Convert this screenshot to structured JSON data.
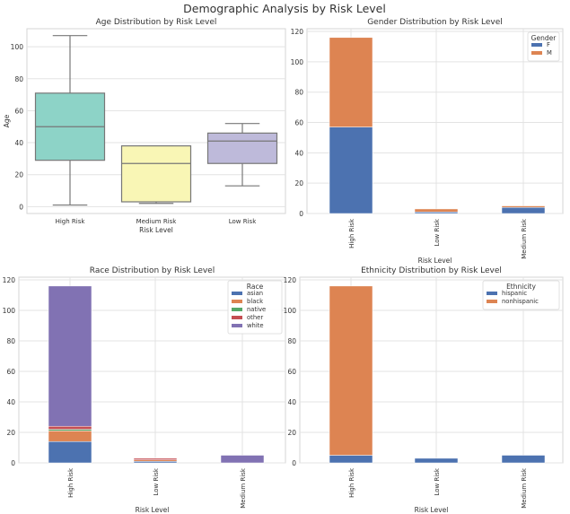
{
  "figure_title": "Demographic Analysis by Risk Level",
  "chart_data": [
    {
      "type": "box",
      "title": "Age Distribution by Risk Level",
      "xlabel": "Risk Level",
      "ylabel": "Age",
      "categories": [
        "High Risk",
        "Medium Risk",
        "Low Risk"
      ],
      "boxes": [
        {
          "whislo": 1,
          "q1": 29,
          "median": 50,
          "q3": 71,
          "whishi": 107,
          "color": "#8dd3c7"
        },
        {
          "whislo": 2,
          "q1": 3,
          "median": 27,
          "q3": 38,
          "whishi": 38,
          "color": "#f9f6b5"
        },
        {
          "whislo": 13,
          "q1": 27,
          "median": 41,
          "q3": 46,
          "whishi": 52,
          "color": "#bebada"
        }
      ],
      "ylim": [
        -4.3,
        111.3
      ],
      "yticks": [
        0,
        20,
        40,
        60,
        80,
        100
      ],
      "grid": true
    },
    {
      "type": "stacked-bar",
      "title": "Gender Distribution by Risk Level",
      "xlabel": "Risk Level",
      "ylabel": "",
      "categories": [
        "High Risk",
        "Low Risk",
        "Medium Risk"
      ],
      "legend_title": "Gender",
      "legend_position": "top-right",
      "series": [
        {
          "name": "F",
          "values": [
            57,
            1,
            4
          ],
          "color": "#4c72b0"
        },
        {
          "name": "M",
          "values": [
            59,
            2,
            1
          ],
          "color": "#dd8452"
        }
      ],
      "ylim": [
        0,
        121.8
      ],
      "yticks": [
        0,
        20,
        40,
        60,
        80,
        100,
        120
      ],
      "grid": true
    },
    {
      "type": "stacked-bar",
      "title": "Race Distribution by Risk Level",
      "xlabel": "Risk Level",
      "ylabel": "",
      "categories": [
        "High Risk",
        "Low Risk",
        "Medium Risk"
      ],
      "legend_title": "Race",
      "legend_position": "top-right",
      "series": [
        {
          "name": "asian",
          "values": [
            14,
            1,
            0
          ],
          "color": "#4c72b0"
        },
        {
          "name": "black",
          "values": [
            7,
            1,
            0
          ],
          "color": "#dd8452"
        },
        {
          "name": "native",
          "values": [
            1,
            0,
            0
          ],
          "color": "#55a868"
        },
        {
          "name": "other",
          "values": [
            2,
            1,
            0
          ],
          "color": "#c44e52"
        },
        {
          "name": "white",
          "values": [
            92,
            0,
            5
          ],
          "color": "#8172b3"
        }
      ],
      "ylim": [
        0,
        121.8
      ],
      "yticks": [
        0,
        20,
        40,
        60,
        80,
        100,
        120
      ],
      "grid": true
    },
    {
      "type": "stacked-bar",
      "title": "Ethnicity Distribution by Risk Level",
      "xlabel": "Risk Level",
      "ylabel": "",
      "categories": [
        "High Risk",
        "Low Risk",
        "Medium Risk"
      ],
      "legend_title": "Ethnicity",
      "legend_position": "top-right",
      "series": [
        {
          "name": "hispanic",
          "values": [
            5,
            3,
            5
          ],
          "color": "#4c72b0"
        },
        {
          "name": "nonhispanic",
          "values": [
            111,
            0,
            0
          ],
          "color": "#dd8452"
        }
      ],
      "ylim": [
        0,
        121.8
      ],
      "yticks": [
        0,
        20,
        40,
        60,
        80,
        100,
        120
      ],
      "grid": true
    }
  ]
}
